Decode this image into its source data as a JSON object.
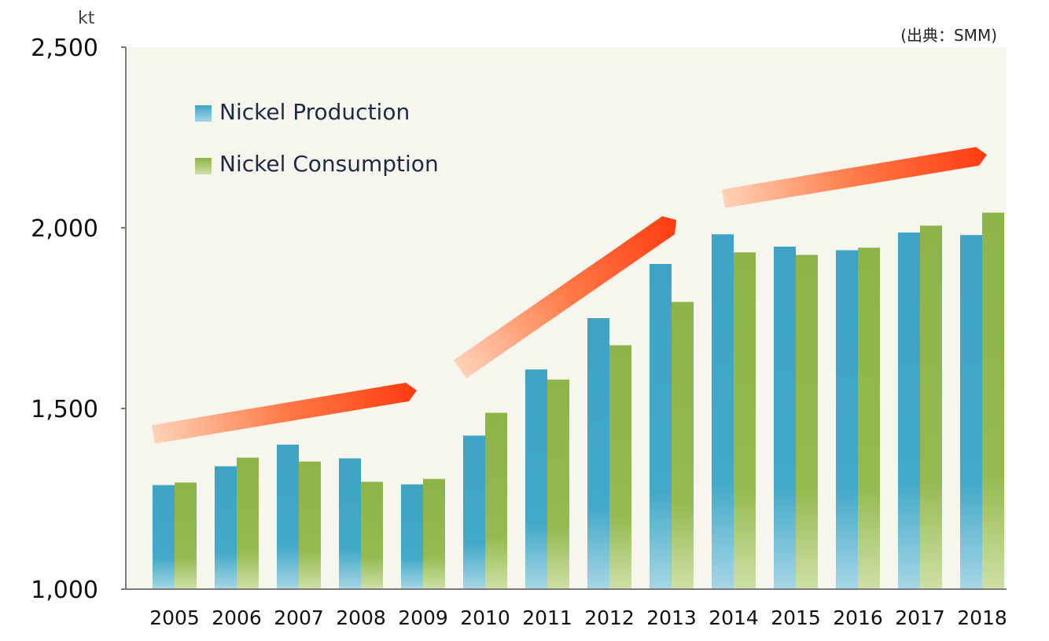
{
  "chart_data": {
    "type": "bar",
    "categories": [
      "2005",
      "2006",
      "2007",
      "2008",
      "2009",
      "2010",
      "2011",
      "2012",
      "2013",
      "2014",
      "2015",
      "2016",
      "2017",
      "2018"
    ],
    "series": [
      {
        "name": "Nickel Production",
        "values": [
          1288,
          1340,
          1400,
          1362,
          1290,
          1425,
          1608,
          1750,
          1900,
          1982,
          1948,
          1938,
          1987,
          1980
        ],
        "color": "#43a8c6"
      },
      {
        "name": "Nickel Consumption",
        "values": [
          1295,
          1364,
          1353,
          1297,
          1305,
          1488,
          1580,
          1675,
          1795,
          1932,
          1925,
          1945,
          2006,
          2042
        ],
        "color": "#8fb64a"
      }
    ],
    "ylim": [
      1000,
      2500
    ],
    "y_ticks": [
      1000,
      1500,
      2000,
      2500
    ],
    "y_tick_labels": [
      "1,000",
      "1,500",
      "2,000",
      "2,500"
    ],
    "y_unit": "kt",
    "source": "(出典：SMM)",
    "legend_position": "top-left",
    "grid": false,
    "colors": {
      "plot_background": "#f6f5ee",
      "axis": "#7a7a7a",
      "trend_arrow": "#ff3b10"
    },
    "annotations": [
      {
        "type": "trend-arrow",
        "from_year": "2005",
        "to_year": "2009"
      },
      {
        "type": "trend-arrow",
        "from_year": "2010",
        "to_year": "2013"
      },
      {
        "type": "trend-arrow",
        "from_year": "2014",
        "to_year": "2018"
      }
    ]
  }
}
